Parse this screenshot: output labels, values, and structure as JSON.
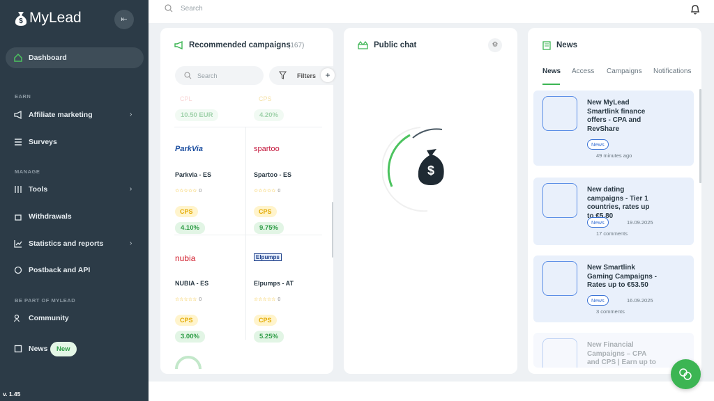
{
  "sidebar": {
    "logo": "MyLead",
    "dashboard": "Dashboard",
    "sections": [
      {
        "heading": "EARN",
        "items": [
          "Affiliate marketing",
          "Surveys"
        ]
      },
      {
        "heading": "MANAGE",
        "items": [
          "Tools",
          "Withdrawals",
          "Statistics and reports",
          "Postback and API"
        ]
      },
      {
        "heading": "BE PART OF MYLEAD",
        "items": [
          "Community",
          "News"
        ]
      }
    ],
    "news_badge": "New",
    "version": "v. 1.45"
  },
  "topbar": {
    "search": "Search"
  },
  "campaigns": {
    "title": "Recommended campaigns",
    "count": "(167)",
    "search": "Search",
    "filters": "Filters",
    "partial": [
      {
        "type": "CPL",
        "payout": "10.50 EUR"
      },
      {
        "type": "CPS",
        "payout": "4.20%"
      }
    ],
    "items": [
      {
        "logo": "ParkVia",
        "name": "Parkvia - ES",
        "rating": "0",
        "type": "CPS",
        "payout": "4.10%"
      },
      {
        "logo": "spartoo",
        "name": "Spartoo - ES",
        "rating": "0",
        "type": "CPS",
        "payout": "9.75%"
      },
      {
        "logo": "nubia",
        "name": "NUBIA - ES",
        "rating": "0",
        "type": "CPS",
        "payout": "3.00%"
      },
      {
        "logo": "Elpumps",
        "name": "Elpumps - AT",
        "rating": "0",
        "type": "CPS",
        "payout": "5.25%"
      }
    ]
  },
  "chat": {
    "title": "Public chat"
  },
  "news": {
    "title": "News",
    "tabs": [
      "News",
      "Access",
      "Campaigns",
      "Notifications"
    ],
    "items": [
      {
        "title": "New MyLead Smartlink finance offers - CPA and RevShare",
        "tag": "News",
        "time": "49 minutes ago"
      },
      {
        "title": "New dating campaigns - Tier 1 countries, rates up to €5.80",
        "tag": "News",
        "date": "19.09.2025",
        "comments": "17 comments"
      },
      {
        "title": "New Smartlink Gaming Campaigns - Rates up to €53.50",
        "tag": "News",
        "date": "16.09.2025",
        "comments": "3 comments"
      },
      {
        "title": "New Financial Campaigns – CPA and CPS | Earn up to"
      }
    ]
  }
}
